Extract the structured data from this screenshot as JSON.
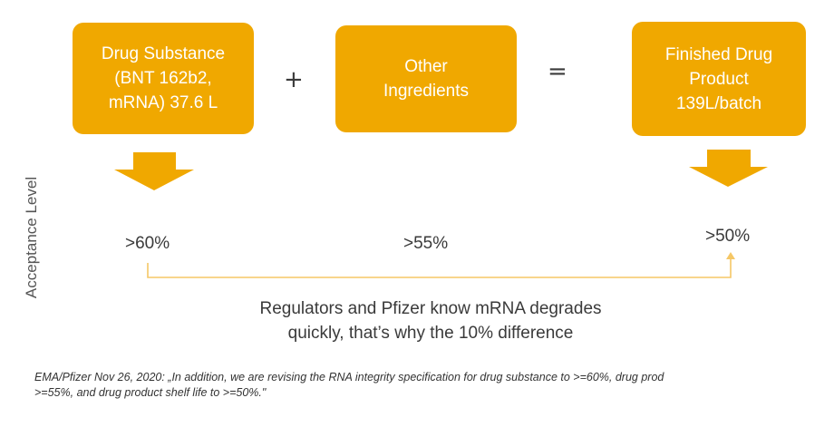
{
  "boxes": [
    {
      "lines": [
        "Drug Substance",
        "(BNT 162b2,",
        "mRNA) 37.6 L"
      ]
    },
    {
      "lines": [
        "Other",
        "Ingredients"
      ]
    },
    {
      "lines": [
        "Finished Drug",
        "Product",
        "139L/batch"
      ]
    }
  ],
  "operators": {
    "plus": "+",
    "equals": "="
  },
  "axis_label": "Acceptance Level",
  "levels": [
    ">60%",
    ">55%",
    ">50%"
  ],
  "note": {
    "lines": [
      "Regulators and Pfizer know mRNA degrades",
      "quickly, that’s why the 10% difference"
    ]
  },
  "citation": {
    "lines": [
      "EMA/Pfizer Nov 26, 2020: „In addition, we are revising the RNA integrity specification for drug substance to >=60%, drug prod",
      ">=55%, and drug product shelf life to >=50%.\""
    ]
  },
  "colors": {
    "box": "#f0a800",
    "arrow": "#f0a800",
    "connector": "#f5c766"
  }
}
